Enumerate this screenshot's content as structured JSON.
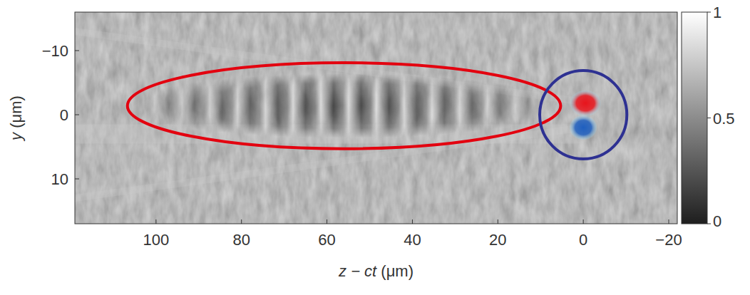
{
  "chart_data": {
    "type": "image",
    "xlabel": "z − ct (μm)",
    "ylabel": "y (μm)",
    "xlim": [
      119,
      -22
    ],
    "xticks": [
      100,
      80,
      60,
      40,
      20,
      0,
      {
        "value": -20,
        "label": "−20"
      }
    ],
    "ylim": [
      -16,
      17
    ],
    "yticks": [
      {
        "value": -10,
        "label": "−10"
      },
      0,
      10
    ],
    "colorbar": {
      "range": [
        0,
        1
      ],
      "ticks": [
        0,
        0.5,
        1
      ]
    },
    "annotations": [
      {
        "shape": "ellipse",
        "center": [
          56,
          -1.4
        ],
        "radii": [
          50.7,
          6.7
        ],
        "color": "#e3000f"
      },
      {
        "shape": "ellipse",
        "center": [
          0,
          0
        ],
        "radii": [
          10.2,
          6.9
        ],
        "color": "#2e3192"
      }
    ],
    "field_lobes": [
      {
        "center": [
          -0.5,
          -1.8
        ],
        "radii": [
          3.6,
          2.0
        ],
        "color": "#e8141c"
      },
      {
        "center": [
          0,
          2.0
        ],
        "radii": [
          3.2,
          1.9
        ],
        "color": "#1f5fbf"
      }
    ]
  }
}
